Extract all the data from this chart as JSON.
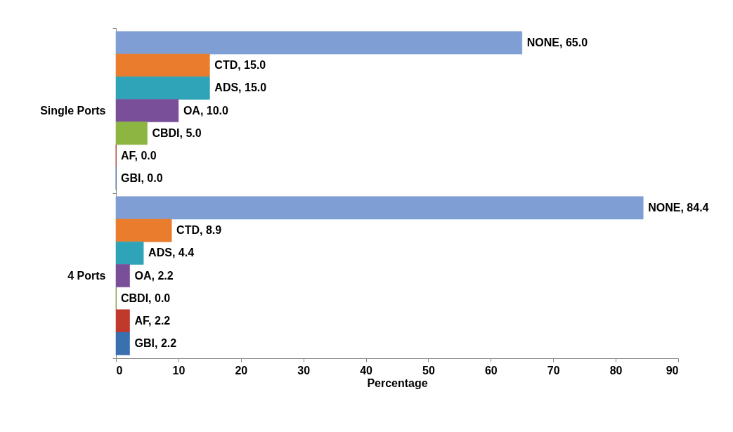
{
  "chart_data": {
    "type": "bar",
    "orientation": "horizontal",
    "xlabel": "Percentage",
    "categories": [
      "Single Ports",
      "4 Ports"
    ],
    "xlim": [
      0,
      90
    ],
    "xticks": [
      0,
      10,
      20,
      30,
      40,
      50,
      60,
      70,
      80,
      90
    ],
    "grid": false,
    "legend": false,
    "series": [
      {
        "color": "#7f9fd4",
        "values": [
          65.0,
          84.4
        ],
        "value_labels": [
          "NONE, 65.0",
          "NONE, 84.4"
        ]
      },
      {
        "color": "#e97d2d",
        "values": [
          15.0,
          8.9
        ],
        "value_labels": [
          "CTD, 15.0",
          "CTD, 8.9"
        ]
      },
      {
        "color": "#2fa4b8",
        "values": [
          15.0,
          4.4
        ],
        "value_labels": [
          "ADS, 15.0",
          "ADS, 4.4"
        ]
      },
      {
        "color": "#7a4f9a",
        "values": [
          10.0,
          2.2
        ],
        "value_labels": [
          "OA, 10.0",
          "OA, 2.2"
        ]
      },
      {
        "color": "#8db542",
        "values": [
          5.0,
          0.0
        ],
        "value_labels": [
          "CBDI, 5.0",
          "CBDI, 0.0"
        ]
      },
      {
        "color": "#c0392b",
        "values": [
          0.0,
          2.2
        ],
        "value_labels": [
          "AF, 0.0",
          "AF, 2.2"
        ]
      },
      {
        "color": "#3a6fb0",
        "values": [
          0.0,
          2.2
        ],
        "value_labels": [
          "GBI, 0.0",
          "GBI, 2.2"
        ]
      }
    ]
  }
}
